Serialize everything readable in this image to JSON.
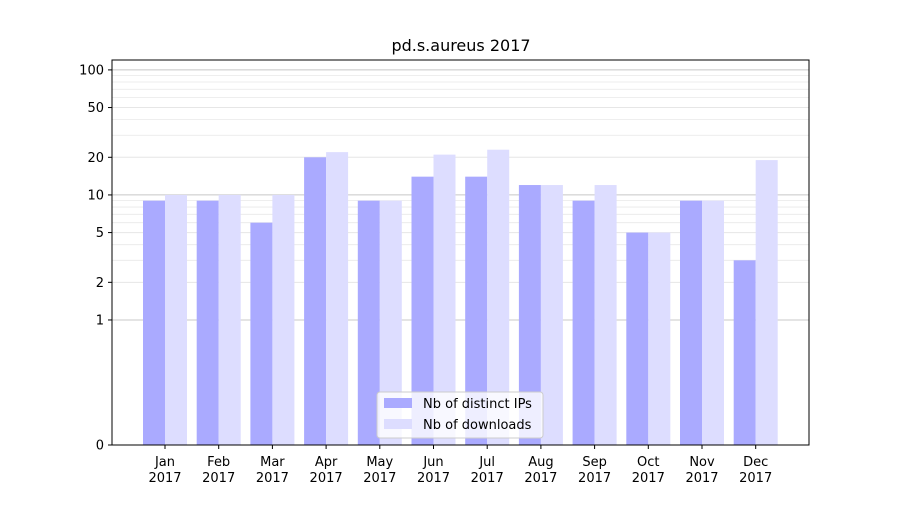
{
  "chart_data": {
    "type": "bar",
    "title": "pd.s.aureus 2017",
    "xlabel": "",
    "ylabel": "",
    "yscale": "symlog",
    "ylim": [
      0,
      120
    ],
    "yticks": [
      0,
      1,
      2,
      5,
      10,
      20,
      50,
      100
    ],
    "yticklabels": [
      "0",
      "1",
      "2",
      "5",
      "10",
      "20",
      "50",
      "100"
    ],
    "grid": true,
    "legend_position": "bottom-center",
    "categories": [
      "Jan\n2017",
      "Feb\n2017",
      "Mar\n2017",
      "Apr\n2017",
      "May\n2017",
      "Jun\n2017",
      "Jul\n2017",
      "Aug\n2017",
      "Sep\n2017",
      "Oct\n2017",
      "Nov\n2017",
      "Dec\n2017"
    ],
    "series": [
      {
        "name": "Nb of distinct IPs",
        "color": "#aaaaff",
        "values": [
          9,
          9,
          6,
          20,
          9,
          14,
          14,
          12,
          9,
          5,
          9,
          3
        ]
      },
      {
        "name": "Nb of downloads",
        "color": "#ddddff",
        "values": [
          10,
          10,
          10,
          22,
          9,
          21,
          23,
          12,
          12,
          5,
          9,
          19
        ]
      }
    ]
  }
}
